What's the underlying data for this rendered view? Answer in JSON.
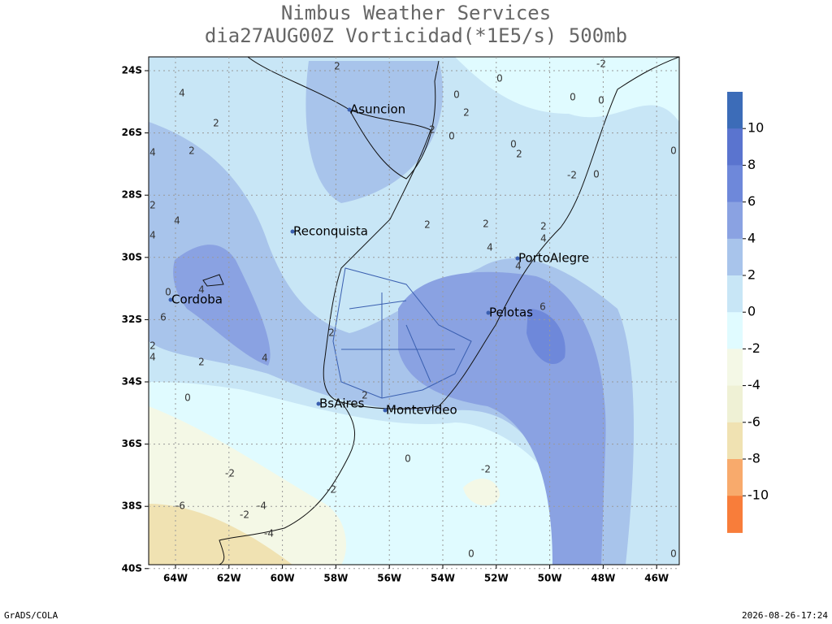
{
  "header": {
    "title": "Nimbus Weather Services",
    "subtitle": "dia27AUG00Z Vorticidad(*1E5/s) 500mb"
  },
  "map": {
    "lat_labels": [
      "24S",
      "26S",
      "28S",
      "30S",
      "32S",
      "34S",
      "36S",
      "38S",
      "40S"
    ],
    "lon_labels": [
      "64W",
      "62W",
      "60W",
      "58W",
      "56W",
      "54W",
      "52W",
      "50W",
      "48W",
      "46W"
    ],
    "cities": [
      {
        "name": "Asuncion"
      },
      {
        "name": "Reconquista"
      },
      {
        "name": "PortoAlegre"
      },
      {
        "name": "Cordoba"
      },
      {
        "name": "Pelotas"
      },
      {
        "name": "BsAires"
      },
      {
        "name": "Montevideo"
      }
    ],
    "contour_labels": [
      2,
      -2,
      0,
      0,
      2,
      0,
      0,
      4,
      2,
      2,
      0,
      0,
      2,
      2,
      4,
      -2,
      0,
      0,
      2,
      4,
      2,
      2,
      2,
      4,
      4,
      4,
      4,
      4,
      0,
      6,
      6,
      2,
      2,
      4,
      2,
      4,
      2,
      0,
      0,
      -2,
      -2,
      -2,
      -6,
      -4,
      -2,
      -4,
      0,
      0
    ]
  },
  "colorbar": {
    "ticks": [
      10,
      8,
      6,
      4,
      2,
      0,
      -2,
      -4,
      -6,
      -8,
      -10
    ],
    "colors": [
      "#3c6cb8",
      "#5a74cf",
      "#6e88da",
      "#8aa2e2",
      "#a8c4eb",
      "#c8e6f6",
      "#e0fbff",
      "#f4f8e6",
      "#eff1d5",
      "#f0e2b2",
      "#f8aa6c",
      "#f87d3a"
    ]
  },
  "footer": {
    "left": "GrADS/COLA",
    "right": "2026-08-26-17:24"
  }
}
